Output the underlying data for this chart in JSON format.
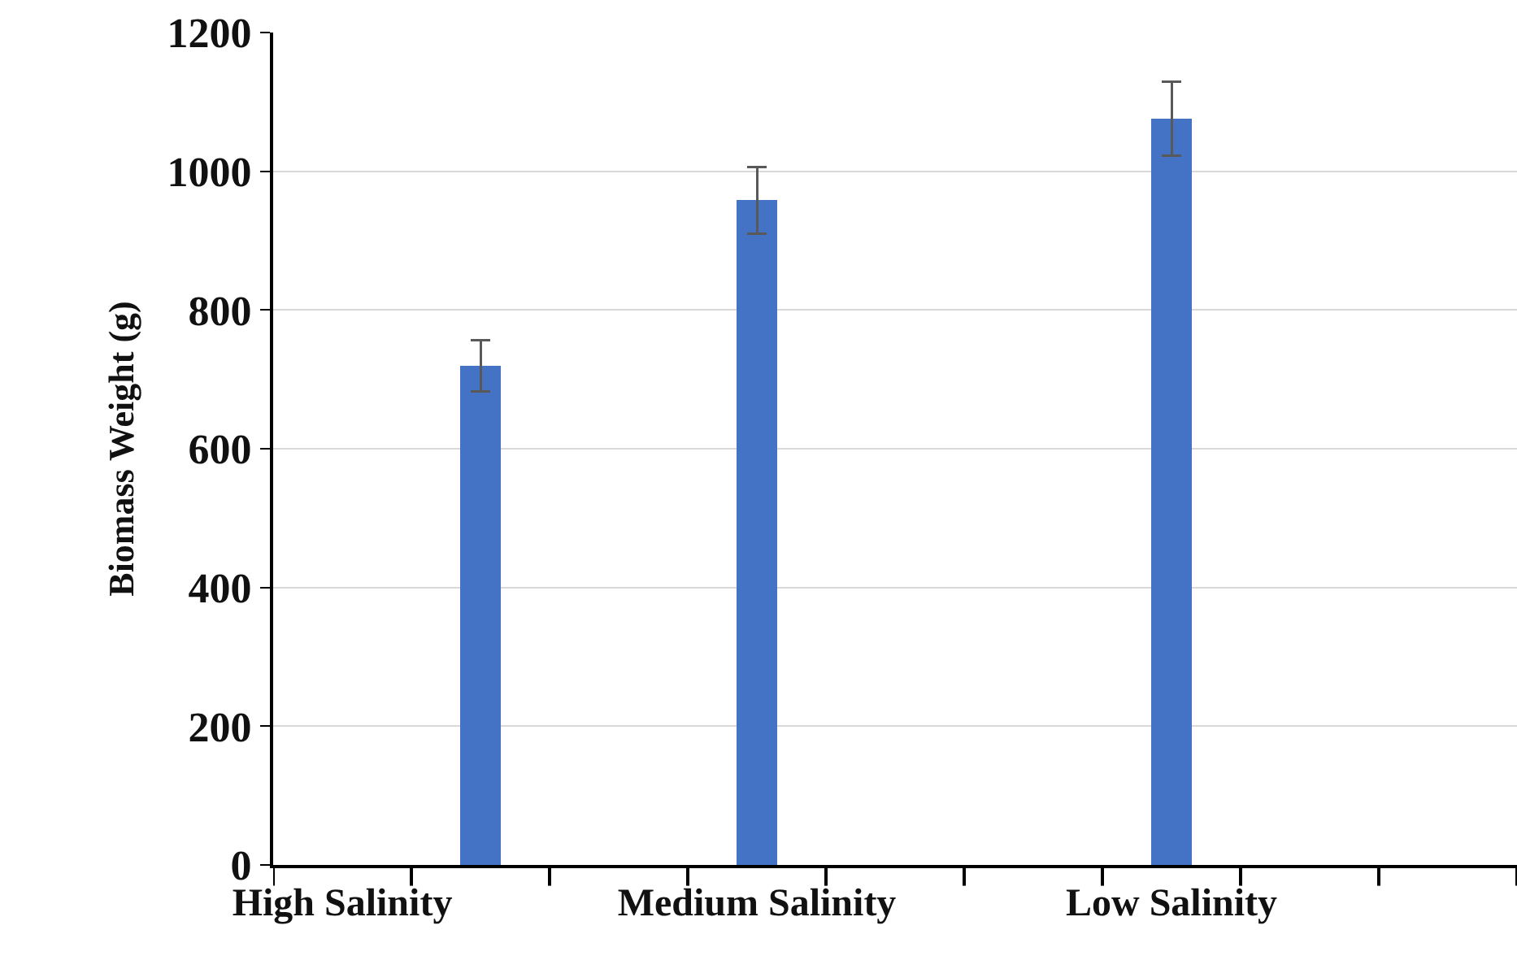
{
  "chart_data": {
    "type": "bar",
    "ylabel": "Biomass Weight (g)",
    "categories": [
      "High Salinity",
      null,
      null,
      "Medium Salinity",
      null,
      null,
      "Low Salinity",
      null,
      null
    ],
    "values": [
      null,
      720,
      null,
      958,
      null,
      null,
      1076,
      null,
      null
    ],
    "errors": [
      null,
      37,
      null,
      48,
      null,
      null,
      53,
      null,
      null
    ],
    "color": "#4472c4",
    "ylim": [
      0,
      1200
    ],
    "yticks": [
      0,
      200,
      400,
      600,
      800,
      1000,
      1200
    ],
    "grid": "y"
  }
}
